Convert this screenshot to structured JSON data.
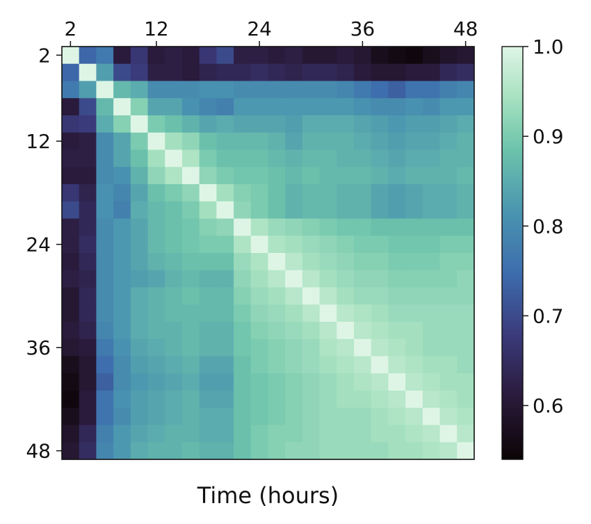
{
  "chart_data": {
    "type": "heatmap",
    "title": "",
    "xlabel": "Time (hours)",
    "ylabel": "",
    "x_tick_labels": [
      "2",
      "12",
      "24",
      "36",
      "48"
    ],
    "y_tick_labels": [
      "2",
      "12",
      "24",
      "36",
      "48"
    ],
    "x_tick_hours": [
      2,
      12,
      24,
      36,
      48
    ],
    "y_tick_hours": [
      2,
      12,
      24,
      36,
      48
    ],
    "x_position": "top",
    "grid": false,
    "hours": [
      2,
      4,
      6,
      8,
      10,
      12,
      14,
      16,
      18,
      20,
      22,
      24,
      26,
      28,
      30,
      32,
      34,
      36,
      38,
      40,
      42,
      44,
      46,
      48
    ],
    "value_range": [
      0.54,
      1.0
    ],
    "colormap": "mako",
    "colormap_stops": [
      [
        0.0,
        "#0b0405"
      ],
      [
        0.15,
        "#2a1a3a"
      ],
      [
        0.3,
        "#3a3a7a"
      ],
      [
        0.45,
        "#3d6cad"
      ],
      [
        0.6,
        "#4a95b0"
      ],
      [
        0.75,
        "#6cc3ab"
      ],
      [
        0.88,
        "#a9e2c1"
      ],
      [
        1.0,
        "#def5e5"
      ]
    ],
    "colorbar": {
      "position": "right",
      "tick_labels": [
        "0.6",
        "0.7",
        "0.8",
        "0.9",
        "1.0"
      ],
      "tick_values": [
        0.6,
        0.7,
        0.8,
        0.9,
        1.0
      ]
    },
    "values": [
      [
        1.0,
        0.74,
        0.77,
        0.61,
        0.67,
        0.61,
        0.62,
        0.61,
        0.67,
        0.7,
        0.62,
        0.62,
        0.61,
        0.62,
        0.6,
        0.6,
        0.61,
        0.6,
        0.57,
        0.56,
        0.55,
        0.57,
        0.59,
        0.6
      ],
      [
        0.74,
        1.0,
        0.83,
        0.7,
        0.68,
        0.62,
        0.62,
        0.61,
        0.63,
        0.64,
        0.64,
        0.65,
        0.64,
        0.63,
        0.64,
        0.64,
        0.63,
        0.61,
        0.6,
        0.6,
        0.61,
        0.61,
        0.64,
        0.65
      ],
      [
        0.77,
        0.83,
        1.0,
        0.87,
        0.85,
        0.8,
        0.8,
        0.8,
        0.81,
        0.81,
        0.8,
        0.8,
        0.8,
        0.8,
        0.8,
        0.8,
        0.79,
        0.77,
        0.75,
        0.73,
        0.76,
        0.76,
        0.78,
        0.79
      ],
      [
        0.61,
        0.7,
        0.87,
        1.0,
        0.91,
        0.84,
        0.84,
        0.81,
        0.79,
        0.78,
        0.82,
        0.82,
        0.82,
        0.82,
        0.82,
        0.82,
        0.82,
        0.81,
        0.8,
        0.8,
        0.81,
        0.8,
        0.82,
        0.82
      ],
      [
        0.67,
        0.68,
        0.85,
        0.91,
        1.0,
        0.9,
        0.88,
        0.86,
        0.84,
        0.85,
        0.84,
        0.84,
        0.84,
        0.83,
        0.85,
        0.85,
        0.85,
        0.84,
        0.83,
        0.82,
        0.83,
        0.83,
        0.84,
        0.85
      ],
      [
        0.61,
        0.62,
        0.8,
        0.84,
        0.9,
        1.0,
        0.94,
        0.92,
        0.88,
        0.87,
        0.87,
        0.87,
        0.86,
        0.84,
        0.86,
        0.86,
        0.86,
        0.85,
        0.84,
        0.83,
        0.84,
        0.84,
        0.85,
        0.86
      ],
      [
        0.62,
        0.62,
        0.8,
        0.84,
        0.88,
        0.94,
        1.0,
        0.95,
        0.9,
        0.88,
        0.88,
        0.88,
        0.87,
        0.86,
        0.87,
        0.87,
        0.86,
        0.86,
        0.85,
        0.84,
        0.85,
        0.85,
        0.86,
        0.86
      ],
      [
        0.61,
        0.61,
        0.8,
        0.81,
        0.86,
        0.92,
        0.95,
        1.0,
        0.92,
        0.9,
        0.89,
        0.89,
        0.88,
        0.87,
        0.88,
        0.87,
        0.87,
        0.87,
        0.86,
        0.85,
        0.86,
        0.86,
        0.86,
        0.87
      ],
      [
        0.67,
        0.63,
        0.81,
        0.79,
        0.84,
        0.88,
        0.9,
        0.92,
        1.0,
        0.94,
        0.91,
        0.9,
        0.88,
        0.86,
        0.87,
        0.87,
        0.86,
        0.86,
        0.84,
        0.83,
        0.84,
        0.85,
        0.85,
        0.86
      ],
      [
        0.7,
        0.64,
        0.81,
        0.78,
        0.85,
        0.87,
        0.88,
        0.9,
        0.94,
        1.0,
        0.92,
        0.9,
        0.88,
        0.86,
        0.87,
        0.87,
        0.86,
        0.86,
        0.84,
        0.83,
        0.84,
        0.85,
        0.85,
        0.86
      ],
      [
        0.62,
        0.64,
        0.8,
        0.82,
        0.84,
        0.87,
        0.88,
        0.89,
        0.91,
        0.92,
        1.0,
        0.95,
        0.93,
        0.92,
        0.91,
        0.9,
        0.89,
        0.89,
        0.88,
        0.88,
        0.88,
        0.88,
        0.88,
        0.88
      ],
      [
        0.62,
        0.65,
        0.8,
        0.82,
        0.84,
        0.87,
        0.88,
        0.89,
        0.9,
        0.9,
        0.95,
        1.0,
        0.95,
        0.94,
        0.93,
        0.92,
        0.91,
        0.9,
        0.9,
        0.89,
        0.89,
        0.89,
        0.9,
        0.9
      ],
      [
        0.61,
        0.64,
        0.8,
        0.82,
        0.84,
        0.86,
        0.87,
        0.88,
        0.88,
        0.88,
        0.93,
        0.95,
        1.0,
        0.96,
        0.94,
        0.93,
        0.92,
        0.91,
        0.91,
        0.9,
        0.9,
        0.9,
        0.91,
        0.91
      ],
      [
        0.62,
        0.63,
        0.8,
        0.82,
        0.83,
        0.84,
        0.86,
        0.87,
        0.86,
        0.86,
        0.92,
        0.94,
        0.96,
        1.0,
        0.96,
        0.94,
        0.93,
        0.92,
        0.92,
        0.91,
        0.91,
        0.91,
        0.91,
        0.92
      ],
      [
        0.6,
        0.64,
        0.8,
        0.82,
        0.85,
        0.86,
        0.87,
        0.88,
        0.87,
        0.87,
        0.91,
        0.93,
        0.94,
        0.96,
        1.0,
        0.96,
        0.94,
        0.93,
        0.93,
        0.92,
        0.92,
        0.92,
        0.92,
        0.92
      ],
      [
        0.6,
        0.64,
        0.8,
        0.82,
        0.85,
        0.86,
        0.87,
        0.87,
        0.87,
        0.87,
        0.9,
        0.92,
        0.93,
        0.94,
        0.96,
        1.0,
        0.96,
        0.95,
        0.94,
        0.93,
        0.93,
        0.93,
        0.93,
        0.93
      ],
      [
        0.61,
        0.63,
        0.79,
        0.82,
        0.85,
        0.86,
        0.86,
        0.87,
        0.86,
        0.86,
        0.89,
        0.91,
        0.92,
        0.93,
        0.94,
        0.96,
        1.0,
        0.96,
        0.95,
        0.94,
        0.94,
        0.93,
        0.93,
        0.93
      ],
      [
        0.6,
        0.61,
        0.77,
        0.81,
        0.84,
        0.85,
        0.86,
        0.87,
        0.86,
        0.86,
        0.89,
        0.9,
        0.91,
        0.92,
        0.93,
        0.95,
        0.96,
        1.0,
        0.96,
        0.95,
        0.94,
        0.93,
        0.93,
        0.93
      ],
      [
        0.57,
        0.6,
        0.75,
        0.8,
        0.83,
        0.84,
        0.85,
        0.86,
        0.84,
        0.84,
        0.88,
        0.9,
        0.91,
        0.92,
        0.93,
        0.94,
        0.95,
        0.96,
        1.0,
        0.96,
        0.95,
        0.94,
        0.94,
        0.93
      ],
      [
        0.56,
        0.6,
        0.73,
        0.8,
        0.82,
        0.83,
        0.84,
        0.85,
        0.83,
        0.83,
        0.88,
        0.89,
        0.9,
        0.91,
        0.92,
        0.93,
        0.94,
        0.95,
        0.96,
        1.0,
        0.96,
        0.95,
        0.94,
        0.94
      ],
      [
        0.55,
        0.61,
        0.76,
        0.81,
        0.83,
        0.84,
        0.85,
        0.86,
        0.84,
        0.84,
        0.88,
        0.89,
        0.9,
        0.91,
        0.92,
        0.93,
        0.94,
        0.94,
        0.95,
        0.96,
        1.0,
        0.96,
        0.95,
        0.94
      ],
      [
        0.57,
        0.61,
        0.76,
        0.8,
        0.83,
        0.84,
        0.85,
        0.86,
        0.85,
        0.85,
        0.88,
        0.89,
        0.9,
        0.91,
        0.92,
        0.93,
        0.93,
        0.93,
        0.94,
        0.95,
        0.96,
        1.0,
        0.96,
        0.95
      ],
      [
        0.59,
        0.64,
        0.78,
        0.82,
        0.84,
        0.85,
        0.86,
        0.86,
        0.85,
        0.85,
        0.88,
        0.9,
        0.91,
        0.91,
        0.92,
        0.93,
        0.93,
        0.93,
        0.94,
        0.94,
        0.95,
        0.96,
        1.0,
        0.96
      ],
      [
        0.6,
        0.65,
        0.79,
        0.82,
        0.85,
        0.86,
        0.86,
        0.87,
        0.86,
        0.86,
        0.88,
        0.9,
        0.91,
        0.92,
        0.92,
        0.93,
        0.93,
        0.93,
        0.93,
        0.94,
        0.94,
        0.95,
        0.96,
        1.0
      ]
    ]
  }
}
